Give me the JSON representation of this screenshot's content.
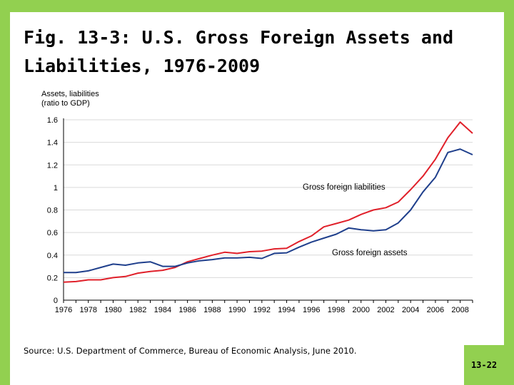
{
  "slide": {
    "title": "Fig. 13-3: U.S. Gross Foreign Assets and Liabilities, 1976-2009",
    "source": "Source: U.S. Department of Commerce, Bureau of Economic Analysis, June 2010.",
    "page_number": "13-22"
  },
  "colors": {
    "frame": "#92d050",
    "liabilities_line": "#e0202a",
    "assets_line": "#1f3f8c",
    "grid": "#d9d9d9"
  },
  "chart_data": {
    "type": "line",
    "ylabel": "Assets, liabilities\n(ratio to GDP)",
    "xlim": [
      1976,
      2009
    ],
    "ylim": [
      0,
      1.6
    ],
    "grid": true,
    "x_ticks": [
      1976,
      1978,
      1980,
      1982,
      1984,
      1986,
      1988,
      1990,
      1992,
      1994,
      1996,
      1998,
      2000,
      2002,
      2004,
      2006,
      2008
    ],
    "y_ticks": [
      0,
      0.2,
      0.4,
      0.6,
      0.8,
      1,
      1.2,
      1.4,
      1.6
    ],
    "x": [
      1976,
      1977,
      1978,
      1979,
      1980,
      1981,
      1982,
      1983,
      1984,
      1985,
      1986,
      1987,
      1988,
      1989,
      1990,
      1991,
      1992,
      1993,
      1994,
      1995,
      1996,
      1997,
      1998,
      1999,
      2000,
      2001,
      2002,
      2003,
      2004,
      2005,
      2006,
      2007,
      2008,
      2009
    ],
    "series": [
      {
        "name": "Gross foreign liabilities",
        "values": [
          0.16,
          0.165,
          0.18,
          0.18,
          0.2,
          0.21,
          0.24,
          0.255,
          0.265,
          0.29,
          0.34,
          0.37,
          0.4,
          0.425,
          0.415,
          0.43,
          0.435,
          0.455,
          0.46,
          0.52,
          0.57,
          0.65,
          0.68,
          0.71,
          0.76,
          0.8,
          0.82,
          0.87,
          0.98,
          1.1,
          1.25,
          1.44,
          1.58,
          1.48
        ],
        "color": "#e0202a"
      },
      {
        "name": "Gross foreign assets",
        "values": [
          0.245,
          0.245,
          0.26,
          0.29,
          0.32,
          0.31,
          0.33,
          0.34,
          0.3,
          0.3,
          0.33,
          0.35,
          0.36,
          0.375,
          0.375,
          0.38,
          0.37,
          0.415,
          0.42,
          0.47,
          0.515,
          0.55,
          0.585,
          0.64,
          0.625,
          0.615,
          0.625,
          0.685,
          0.8,
          0.96,
          1.09,
          1.31,
          1.34,
          1.29
        ],
        "color": "#1f3f8c"
      }
    ],
    "annotations": [
      {
        "text": "Gross foreign liabilities",
        "series": 0
      },
      {
        "text": "Gross foreign assets",
        "series": 1
      }
    ]
  }
}
